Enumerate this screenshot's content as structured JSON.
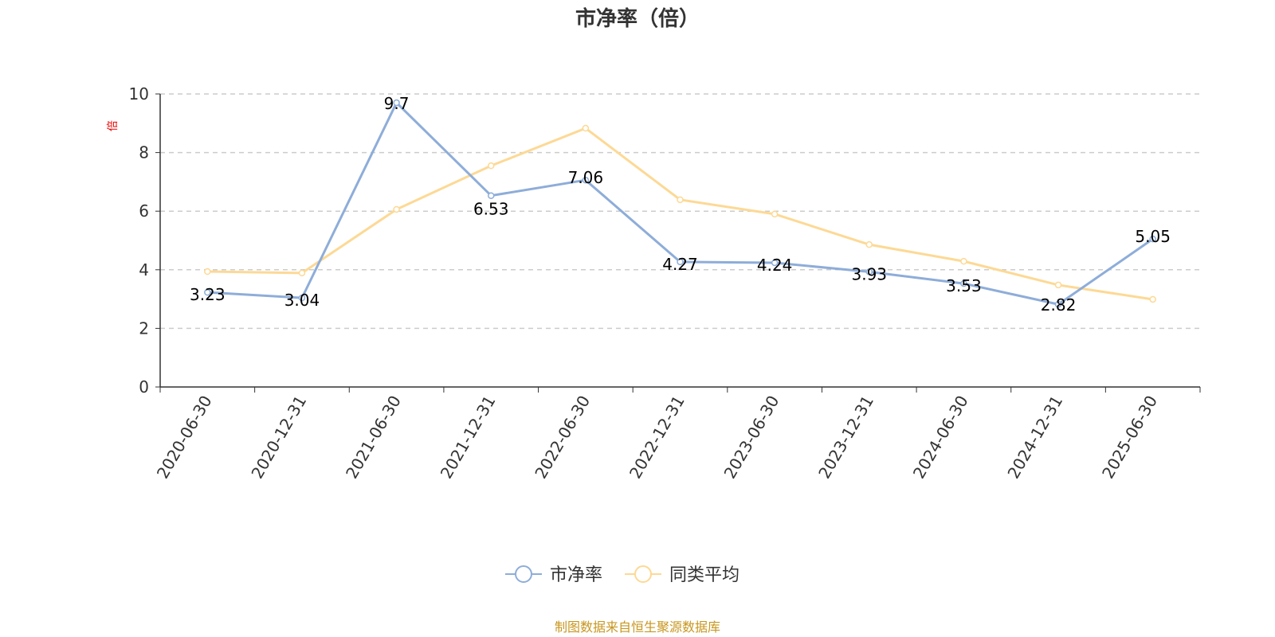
{
  "chart_data": {
    "type": "line",
    "title": "市净率（倍）",
    "ylabel": "倍",
    "ylim": [
      0,
      10
    ],
    "yticks": [
      0,
      2,
      4,
      6,
      8,
      10
    ],
    "grid": true,
    "legend_placement": "bottom",
    "categories": [
      "2020-06-30",
      "2020-12-31",
      "2021-06-30",
      "2021-12-31",
      "2022-06-30",
      "2022-12-31",
      "2023-06-30",
      "2023-12-31",
      "2024-06-30",
      "2024-12-31",
      "2025-06-30"
    ],
    "series": [
      {
        "name": "市净率",
        "color": "#8eadd9",
        "values": [
          3.23,
          3.04,
          9.7,
          6.53,
          7.06,
          4.27,
          4.24,
          3.93,
          3.53,
          2.82,
          5.05
        ],
        "labels": true
      },
      {
        "name": "同类平均",
        "color": "#fdd995",
        "values": [
          3.94,
          3.89,
          6.06,
          7.55,
          8.83,
          6.39,
          5.9,
          4.86,
          4.29,
          3.48,
          2.99
        ],
        "labels": false
      }
    ]
  },
  "source": "制图数据来自恒生聚源数据库"
}
